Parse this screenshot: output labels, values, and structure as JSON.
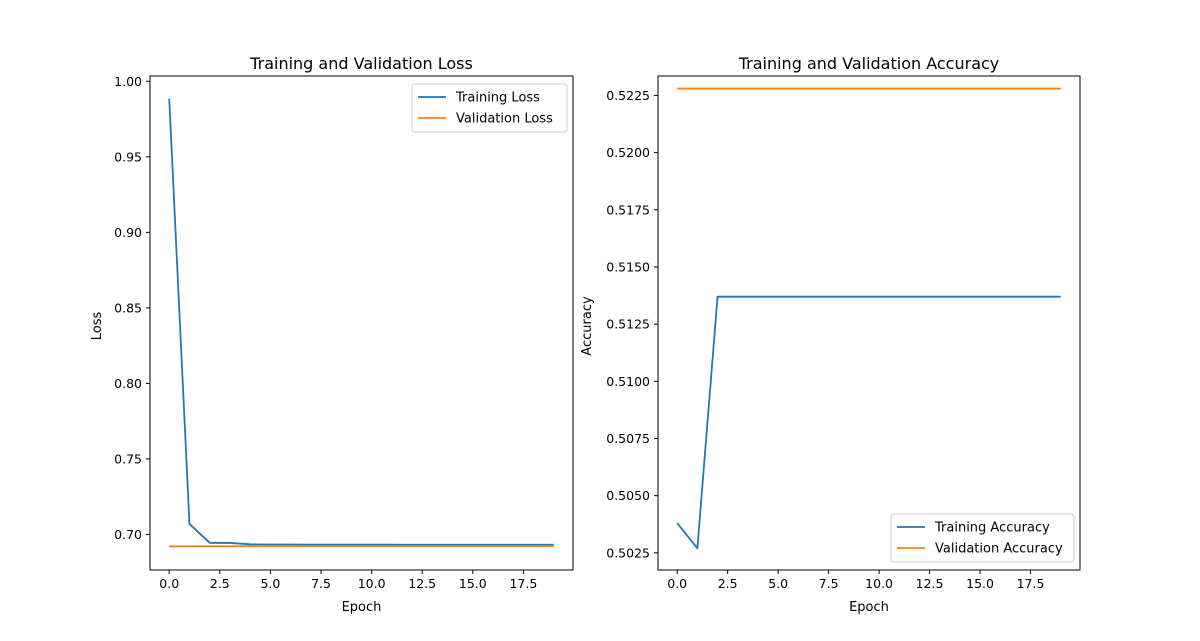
{
  "colors": {
    "training": "#1f77b4",
    "validation": "#ff7f0e",
    "frame": "#000000",
    "background": "#ffffff"
  },
  "chart_data": [
    {
      "type": "line",
      "title": "Training and Validation Loss",
      "xlabel": "Epoch",
      "ylabel": "Loss",
      "xlim": [
        -0.95,
        19.95
      ],
      "ylim": [
        0.6765,
        1.0035
      ],
      "xticks": [
        "0.0",
        "2.5",
        "5.0",
        "7.5",
        "10.0",
        "12.5",
        "15.0",
        "17.5"
      ],
      "yticks": [
        "0.70",
        "0.75",
        "0.80",
        "0.85",
        "0.90",
        "0.95",
        "1.00"
      ],
      "grid": false,
      "legend_position": "upper right",
      "x": [
        0,
        1,
        2,
        3,
        4,
        5,
        6,
        7,
        8,
        9,
        10,
        11,
        12,
        13,
        14,
        15,
        16,
        17,
        18,
        19
      ],
      "series": [
        {
          "name": "Training Loss",
          "color": "#1f77b4",
          "values": [
            0.9885,
            0.707,
            0.6945,
            0.6944,
            0.6935,
            0.6934,
            0.6934,
            0.6933,
            0.6933,
            0.6933,
            0.6933,
            0.6933,
            0.6932,
            0.6932,
            0.6932,
            0.6932,
            0.6932,
            0.6932,
            0.6932,
            0.6932
          ]
        },
        {
          "name": "Validation Loss",
          "color": "#ff7f0e",
          "values": [
            0.6921,
            0.6922,
            0.6922,
            0.6922,
            0.6923,
            0.6923,
            0.6923,
            0.6923,
            0.6923,
            0.6923,
            0.6923,
            0.6923,
            0.6923,
            0.6923,
            0.6923,
            0.6923,
            0.6923,
            0.6923,
            0.6923,
            0.6923
          ]
        }
      ]
    },
    {
      "type": "line",
      "title": "Training and Validation Accuracy",
      "xlabel": "Epoch",
      "ylabel": "Accuracy",
      "xlim": [
        -0.95,
        19.95
      ],
      "ylim": [
        0.50175,
        0.52335
      ],
      "xticks": [
        "0.0",
        "2.5",
        "5.0",
        "7.5",
        "10.0",
        "12.5",
        "15.0",
        "17.5"
      ],
      "yticks": [
        "0.5025",
        "0.5050",
        "0.5075",
        "0.5100",
        "0.5125",
        "0.5150",
        "0.5175",
        "0.5200",
        "0.5225"
      ],
      "grid": false,
      "legend_position": "lower right",
      "x": [
        0,
        1,
        2,
        3,
        4,
        5,
        6,
        7,
        8,
        9,
        10,
        11,
        12,
        13,
        14,
        15,
        16,
        17,
        18,
        19
      ],
      "series": [
        {
          "name": "Training Accuracy",
          "color": "#1f77b4",
          "values": [
            0.5038,
            0.5027,
            0.5137,
            0.5137,
            0.5137,
            0.5137,
            0.5137,
            0.5137,
            0.5137,
            0.5137,
            0.5137,
            0.5137,
            0.5137,
            0.5137,
            0.5137,
            0.5137,
            0.5137,
            0.5137,
            0.5137,
            0.5137
          ]
        },
        {
          "name": "Validation Accuracy",
          "color": "#ff7f0e",
          "values": [
            0.5228,
            0.5228,
            0.5228,
            0.5228,
            0.5228,
            0.5228,
            0.5228,
            0.5228,
            0.5228,
            0.5228,
            0.5228,
            0.5228,
            0.5228,
            0.5228,
            0.5228,
            0.5228,
            0.5228,
            0.5228,
            0.5228,
            0.5228
          ]
        }
      ]
    }
  ]
}
